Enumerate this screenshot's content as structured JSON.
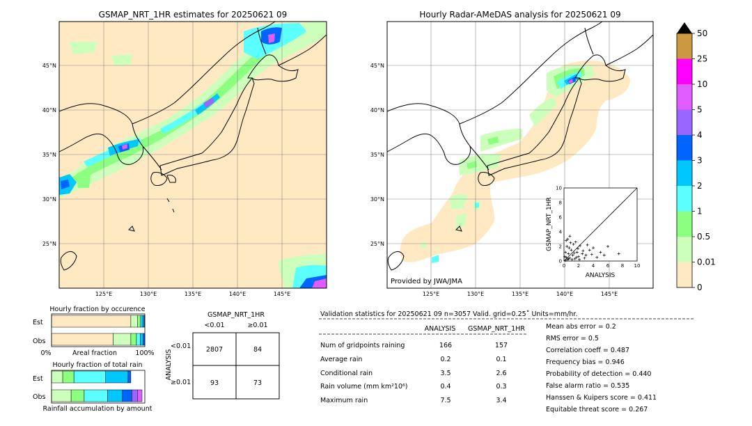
{
  "left_map": {
    "title": "GSMAP_NRT_1HR estimates for 20250621 09",
    "lat_labels": [
      "45°N",
      "40°N",
      "35°N",
      "30°N",
      "25°N"
    ],
    "lon_labels": [
      "125°E",
      "130°E",
      "135°E",
      "140°E",
      "145°E"
    ]
  },
  "right_map": {
    "title": "Hourly Radar-AMeDAS analysis for 20250621 09",
    "lat_labels": [
      "45°N",
      "40°N",
      "35°N",
      "30°N",
      "25°N"
    ],
    "lon_labels": [
      "125°E",
      "130°E",
      "135°E",
      "140°E",
      "145°E"
    ],
    "credit": "Provided by JWA/JMA"
  },
  "colorbar": {
    "labels": [
      "50",
      "25",
      "10",
      "5",
      "4",
      "3",
      "2",
      "1",
      "0.5",
      "0.01",
      "0"
    ],
    "colors": [
      "#ffe9c2",
      "#ccffbb",
      "#8cff80",
      "#5cffff",
      "#00c8ff",
      "#0064ff",
      "#9966ff",
      "#e05cff",
      "#ff00ff",
      "#cc9940"
    ]
  },
  "fraction_occurrence": {
    "title": "Hourly fraction by occurence",
    "rows": [
      "Est",
      "Obs"
    ],
    "xlabel_left": "0%",
    "xlabel_mid": "Areal fraction",
    "xlabel_right": "100%"
  },
  "fraction_total": {
    "title": "Hourly fraction of total rain",
    "rows": [
      "Est",
      "Obs"
    ],
    "xlabel": "Rainfall accumulation by amount"
  },
  "contingency": {
    "title": "GSMAP_NRT_1HR",
    "col_labels": [
      "<0.01",
      "≥0.01"
    ],
    "row_axis": "ANALYSIS",
    "row_labels": [
      "<0.01",
      "≥0.01"
    ],
    "cells": [
      [
        "2807",
        "84"
      ],
      [
        "93",
        "73"
      ]
    ]
  },
  "validation": {
    "header": "Validation statistics for 20250621 09  n=3057 Valid. grid=0.25˚ Units=mm/hr.",
    "col_analysis": "ANALYSIS",
    "col_gsmap": "GSMAP_NRT_1HR",
    "rows": [
      {
        "label": "Num of gridpoints raining",
        "analysis": "166",
        "gsmap": "157"
      },
      {
        "label": "Average rain",
        "analysis": "0.2",
        "gsmap": "0.1"
      },
      {
        "label": "Conditional rain",
        "analysis": "3.5",
        "gsmap": "2.6"
      },
      {
        "label": "Rain volume (mm km²10⁶)",
        "analysis": "0.4",
        "gsmap": "0.3"
      },
      {
        "label": "Maximum rain",
        "analysis": "7.5",
        "gsmap": "3.4"
      }
    ],
    "scores": [
      "Mean abs error =    0.2",
      "RMS error =    0.5",
      "Correlation coeff =  0.487",
      "Frequency bias =  0.946",
      "Probability of detection =  0.440",
      "False alarm ratio =  0.535",
      "Hanssen & Kuipers score =  0.411",
      "Equitable threat score =  0.267"
    ]
  },
  "chart_data": [
    {
      "type": "bar",
      "title": "Hourly fraction by occurence",
      "categories": [
        "Est",
        "Obs"
      ],
      "series": [
        {
          "color": "#ffe9c2",
          "values": [
            0.85,
            0.66
          ]
        },
        {
          "color": "#ccffbb",
          "values": [
            0.07,
            0.19
          ]
        },
        {
          "color": "#8cff80",
          "values": [
            0.03,
            0.06
          ]
        },
        {
          "color": "#5cffff",
          "values": [
            0.02,
            0.04
          ]
        },
        {
          "color": "#00c8ff",
          "values": [
            0.02,
            0.03
          ]
        },
        {
          "color": "#0064ff",
          "values": [
            0.01,
            0.02
          ]
        }
      ]
    },
    {
      "type": "bar",
      "title": "Hourly fraction of total rain",
      "categories": [
        "Est",
        "Obs"
      ],
      "series": [
        {
          "color": "#ccffbb",
          "values": [
            0.12,
            0.21
          ]
        },
        {
          "color": "#8cff80",
          "values": [
            0.12,
            0.14
          ]
        },
        {
          "color": "#5cffff",
          "values": [
            0.34,
            0.25
          ]
        },
        {
          "color": "#00c8ff",
          "values": [
            0.24,
            0.16
          ]
        },
        {
          "color": "#0064ff",
          "values": [
            0.03,
            0.1
          ]
        },
        {
          "color": "#9966ff",
          "values": [
            0.0,
            0.06
          ]
        },
        {
          "color": "#e05cff",
          "values": [
            0.0,
            0.05
          ]
        }
      ]
    },
    {
      "type": "scatter",
      "xlabel": "ANALYSIS",
      "ylabel": "GSMAP_NRT_1HR",
      "xlim": [
        0,
        10
      ],
      "ylim": [
        0,
        10
      ],
      "ticks": [
        "0",
        "2",
        "4",
        "6",
        "8",
        "10"
      ],
      "points": [
        [
          0.2,
          0.1
        ],
        [
          0.3,
          0.5
        ],
        [
          0.5,
          0.2
        ],
        [
          0.6,
          1.0
        ],
        [
          0.8,
          0.4
        ],
        [
          1.0,
          1.5
        ],
        [
          0.4,
          2.0
        ],
        [
          1.2,
          0.8
        ],
        [
          1.5,
          0.3
        ],
        [
          0.9,
          2.5
        ],
        [
          1.8,
          1.2
        ],
        [
          2.0,
          0.6
        ],
        [
          0.3,
          2.8
        ],
        [
          2.5,
          1.0
        ],
        [
          1.1,
          0.2
        ],
        [
          3.0,
          0.8
        ],
        [
          2.2,
          2.1
        ],
        [
          0.7,
          1.8
        ],
        [
          1.6,
          2.6
        ],
        [
          3.5,
          1.5
        ],
        [
          0.2,
          1.2
        ],
        [
          4.0,
          1.8
        ],
        [
          2.8,
          0.4
        ],
        [
          0.5,
          3.0
        ],
        [
          1.4,
          1.1
        ],
        [
          5.0,
          1.2
        ],
        [
          3.2,
          2.2
        ],
        [
          6.0,
          2.0
        ],
        [
          7.5,
          1.0
        ],
        [
          4.5,
          0.5
        ],
        [
          1.9,
          1.7
        ],
        [
          0.1,
          0.6
        ],
        [
          2.6,
          1.4
        ],
        [
          3.8,
          0.9
        ],
        [
          0.6,
          0.3
        ],
        [
          1.3,
          2.3
        ],
        [
          2.1,
          0.2
        ],
        [
          0.8,
          3.4
        ],
        [
          5.5,
          0.8
        ],
        [
          1.7,
          0.5
        ]
      ]
    }
  ]
}
